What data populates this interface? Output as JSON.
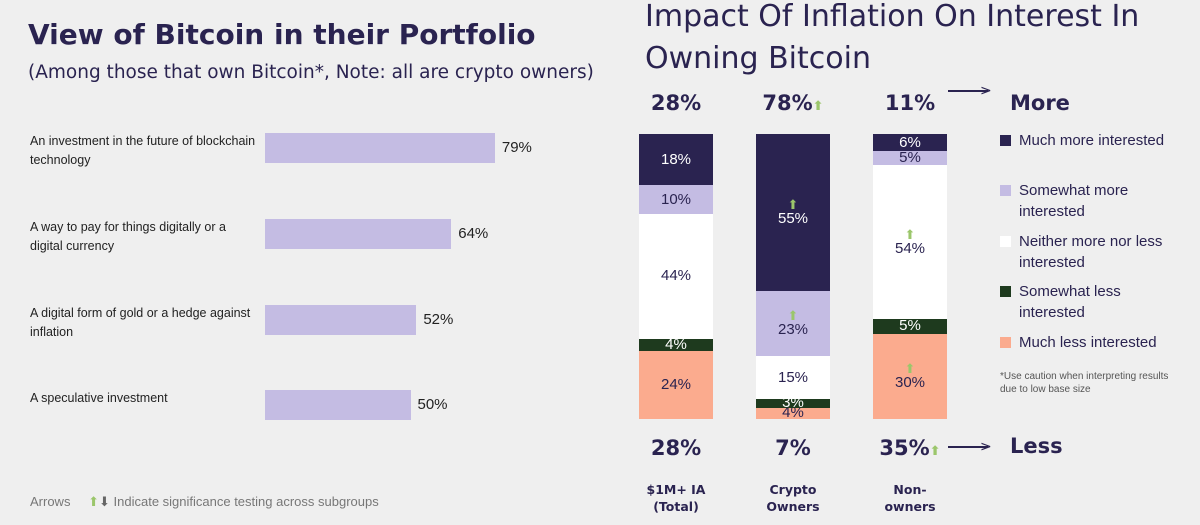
{
  "left": {
    "title": "View of Bitcoin in their Portfolio",
    "subtitle": "(Among those that own Bitcoin*, Note: all are crypto owners)",
    "footnote_prefix": "Arrows",
    "footnote_text": "Indicate significance testing across subgroups"
  },
  "right": {
    "title": "Impact Of Inflation On Interest In Owning Bitcoin",
    "more_label": "More",
    "less_label": "Less",
    "caution": "*Use caution when interpreting results due to low base size"
  },
  "chart_data": [
    {
      "type": "bar",
      "orientation": "horizontal",
      "categories": [
        "An investment in the future of blockchain technology",
        "A way to pay for things digitally or a digital currency",
        "A digital form of gold or a hedge against inflation",
        "A speculative investment"
      ],
      "values": [
        79,
        64,
        52,
        50
      ],
      "value_labels": [
        "79%",
        "64%",
        "52%",
        "50%"
      ],
      "color": "#c4bce3"
    },
    {
      "type": "bar",
      "stacked": true,
      "categories": [
        "$1M+ IA (Total)",
        "Crypto Owners",
        "Non-owners"
      ],
      "series": [
        {
          "name": "Much more interested",
          "color": "#2a2350",
          "text_color": "#ffffff",
          "values": [
            18,
            55,
            6
          ],
          "sig_up": [
            false,
            true,
            false
          ]
        },
        {
          "name": "Somewhat more interested",
          "color": "#c4bce3",
          "text_color": "#2a2350",
          "values": [
            10,
            23,
            5
          ],
          "sig_up": [
            false,
            true,
            false
          ]
        },
        {
          "name": "Neither more nor less interested",
          "color": "#ffffff",
          "text_color": "#2a2350",
          "values": [
            44,
            15,
            54
          ],
          "sig_up": [
            false,
            false,
            true
          ]
        },
        {
          "name": "Somewhat less interested",
          "color": "#1e3a1e",
          "text_color": "#ffffff",
          "values": [
            4,
            3,
            5
          ],
          "sig_up": [
            false,
            false,
            false
          ]
        },
        {
          "name": "Much less interested",
          "color": "#fbab8e",
          "text_color": "#2a2350",
          "values": [
            24,
            4,
            30
          ],
          "sig_up": [
            false,
            false,
            true
          ]
        }
      ],
      "more_totals": [
        "28%",
        "78%",
        "11%"
      ],
      "more_sig_up": [
        false,
        true,
        false
      ],
      "less_totals": [
        "28%",
        "7%",
        "35%"
      ],
      "less_sig_up": [
        false,
        false,
        true
      ]
    }
  ],
  "colors": {
    "sig_arrow": "#9bc66b"
  }
}
